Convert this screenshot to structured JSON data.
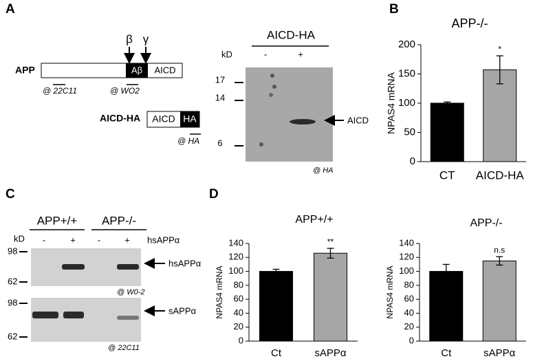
{
  "panel_labels": [
    "A",
    "B",
    "C",
    "D"
  ],
  "diagram": {
    "beta": "β",
    "gamma": "γ",
    "app": "APP",
    "abeta": "Aβ",
    "aicd": "AICD",
    "ab_22c11": "@ 22C11",
    "ab_wo2": "@ WO2",
    "aicd_ha": "AICD-HA",
    "aicd_box": "AICD",
    "ha_box": "HA",
    "ab_ha": "@ HA"
  },
  "blot_a": {
    "title": "AICD-HA",
    "kd": "kD",
    "lanes": [
      "-",
      "+"
    ],
    "markers": [
      "17",
      "14",
      "6"
    ],
    "band": "AICD",
    "antibody": "@ HA"
  },
  "blot_c": {
    "groups": [
      "APP+/+",
      "APP-/-"
    ],
    "kd": "kD",
    "lanes": [
      "-",
      "+",
      "-",
      "+"
    ],
    "treatment": "hsAPPα",
    "top": {
      "markers": [
        "98",
        "62"
      ],
      "band": "hsAPPα",
      "antibody": "@ W0-2"
    },
    "bottom": {
      "markers": [
        "98",
        "62"
      ],
      "band": "sAPPα",
      "antibody": "@ 22C11"
    }
  },
  "chart_data": [
    {
      "type": "bar",
      "title": "APP-/-",
      "ylabel": "NPAS4 mRNA",
      "categories": [
        "CT",
        "AICD-HA"
      ],
      "values": [
        100,
        157
      ],
      "errors": [
        2,
        24
      ],
      "colors": [
        "#000000",
        "#a6a6a6"
      ],
      "ylim": [
        0,
        200
      ],
      "yticks": [
        0,
        50,
        100,
        150,
        200
      ],
      "significance": [
        null,
        "*"
      ]
    },
    {
      "type": "bar",
      "title": "APP+/+",
      "ylabel": "NPAS4 mRNA",
      "categories": [
        "Ct",
        "sAPPα"
      ],
      "values": [
        100,
        126
      ],
      "errors": [
        3,
        7
      ],
      "colors": [
        "#000000",
        "#a6a6a6"
      ],
      "ylim": [
        0,
        140
      ],
      "yticks": [
        0,
        20,
        40,
        60,
        80,
        100,
        120,
        140
      ],
      "significance": [
        null,
        "**"
      ]
    },
    {
      "type": "bar",
      "title": "APP-/-",
      "ylabel": "NPAS4 mRNA",
      "categories": [
        "Ct",
        "sAPPα"
      ],
      "values": [
        100,
        115
      ],
      "errors": [
        10,
        6
      ],
      "colors": [
        "#000000",
        "#a6a6a6"
      ],
      "ylim": [
        0,
        140
      ],
      "yticks": [
        0,
        20,
        40,
        60,
        80,
        100,
        120,
        140
      ],
      "significance": [
        null,
        "n.s"
      ]
    }
  ]
}
